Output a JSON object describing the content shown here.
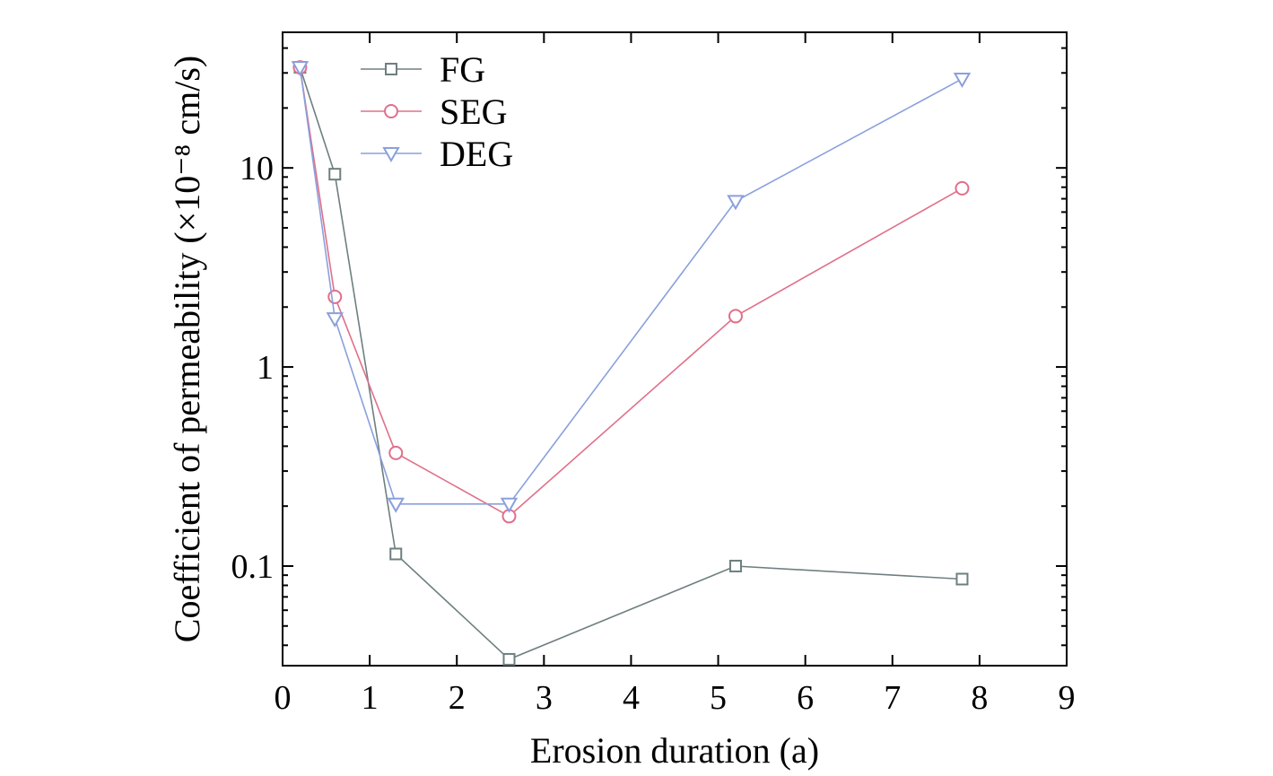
{
  "chart_data": {
    "type": "line",
    "xlabel": "Erosion duration (a)",
    "ylabel": "Coefficient of permeability (×10⁻⁸ cm/s)",
    "x_scale": "linear",
    "y_scale": "log",
    "xlim": [
      0,
      9
    ],
    "ylim": [
      0.0316,
      48
    ],
    "x_ticks": [
      0,
      1,
      2,
      3,
      4,
      5,
      6,
      7,
      8,
      9
    ],
    "x_tick_labels": [
      "0",
      "1",
      "2",
      "3",
      "4",
      "5",
      "6",
      "7",
      "8",
      "9"
    ],
    "y_ticks": [
      0.1,
      1,
      10
    ],
    "y_tick_labels": [
      "0.1",
      "1",
      "10"
    ],
    "grid": false,
    "legend_position": "top-left",
    "series": [
      {
        "name": "FG",
        "color": "#6e7f80",
        "marker": "square",
        "x": [
          0.2,
          0.6,
          1.3,
          2.6,
          5.2,
          7.8
        ],
        "y": [
          32,
          9.3,
          0.115,
          0.034,
          0.1,
          0.086
        ]
      },
      {
        "name": "SEG",
        "color": "#e0708a",
        "marker": "circle",
        "x": [
          0.2,
          0.6,
          1.3,
          2.6,
          5.2,
          7.8
        ],
        "y": [
          32,
          2.25,
          0.37,
          0.178,
          1.8,
          7.9
        ]
      },
      {
        "name": "DEG",
        "color": "#8aa0dd",
        "marker": "triangle-down",
        "x": [
          0.2,
          0.6,
          1.3,
          2.6,
          5.2,
          7.8
        ],
        "y": [
          32,
          1.75,
          0.205,
          0.205,
          6.8,
          28
        ]
      }
    ]
  }
}
